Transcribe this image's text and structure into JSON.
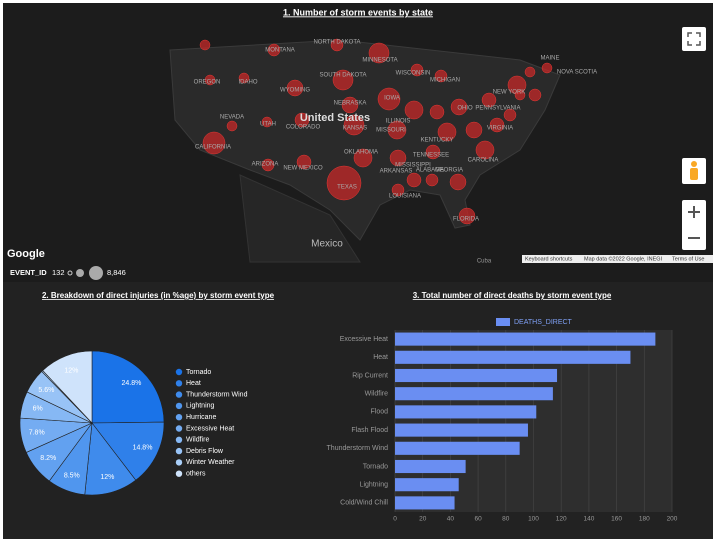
{
  "map": {
    "title": "1. Number of storm events by state",
    "labels": [
      "MONTANA",
      "NORTH DAKOTA",
      "MINNESOTA",
      "OREGON",
      "IDAHO",
      "SOUTH DAKOTA",
      "WYOMING",
      "WISCONSIN",
      "MICHIGAN",
      "NEBRASKA",
      "IOWA",
      "NEVADA",
      "UTAH",
      "COLORADO",
      "KANSAS",
      "ILLINOIS",
      "OHIO",
      "CALIFORNIA",
      "OKLAHOMA",
      "ARIZONA",
      "NEW MEXICO",
      "TEXAS",
      "LOUISIANA",
      "FLORIDA",
      "GEORGIA",
      "NEW YORK",
      "MAINE",
      "NOVA SCOTIA",
      "KENTUCKY",
      "TENNESSEE",
      "MISSOURI",
      "ARKANSAS",
      "CAROLINA",
      "ALABAMA",
      "MISSISSIPPI",
      "PENNSYLVANIA",
      "VIRGINIA"
    ],
    "country": "United States",
    "neighbor": "Mexico",
    "island": "Cuba",
    "brand": "Google",
    "footer": [
      "Keyboard shortcuts",
      "Map data ©2022 Google, INEGI",
      "Terms of Use"
    ],
    "legend": {
      "name": "EVENT_ID",
      "min": "132",
      "max": "8,846"
    }
  },
  "chart_data": [
    {
      "type": "pie",
      "title": "2. Breakdown of direct injuries (in %age) by storm event type",
      "categories": [
        "Tornado",
        "Heat",
        "Thunderstorm Wind",
        "Lightning",
        "Hurricane",
        "Excessive Heat",
        "Wildfire",
        "Debris Flow",
        "Winter Weather",
        "others"
      ],
      "values": [
        24.8,
        14.8,
        12,
        8.5,
        8.2,
        7.8,
        6,
        5.6,
        0.3,
        12
      ],
      "value_labels": [
        "24.8%",
        "14.8%",
        "12%",
        "8.5%",
        "8.2%",
        "7.8%",
        "6%",
        "5.6%",
        null,
        "12%"
      ],
      "colors": [
        "#1a73e8",
        "#2f80ea",
        "#3f8bec",
        "#5096ee",
        "#62a1f0",
        "#74acf2",
        "#86b8f4",
        "#98c3f6",
        "#aacff8",
        "#cfe3fb"
      ]
    },
    {
      "type": "hbar",
      "title": "3. Total number of direct deaths by storm event type",
      "categories": [
        "Excessive Heat",
        "Heat",
        "Rip Current",
        "Wildfire",
        "Flood",
        "Flash Flood",
        "Thunderstorm Wind",
        "Tornado",
        "Lightning",
        "Cold/Wind Chill"
      ],
      "series": [
        {
          "name": "DEATHS_DIRECT",
          "color": "#6a8ef2",
          "values": [
            188,
            170,
            117,
            114,
            102,
            96,
            90,
            51,
            46,
            43
          ]
        }
      ],
      "xlim": [
        0,
        200
      ],
      "xticks": [
        0,
        20,
        40,
        60,
        80,
        100,
        120,
        140,
        160,
        180,
        200
      ],
      "grid": true
    }
  ]
}
